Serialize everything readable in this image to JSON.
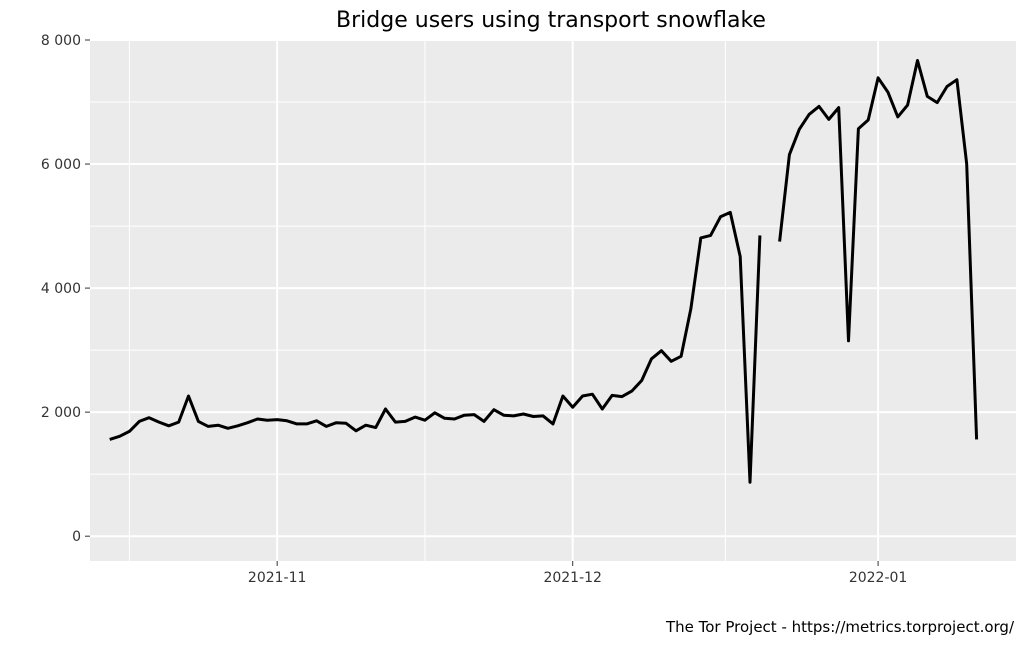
{
  "chart_data": {
    "type": "line",
    "title": "Bridge users using transport snowflake",
    "caption": "The Tor Project - https://metrics.torproject.org/",
    "xlabel": "",
    "ylabel": "",
    "grid": true,
    "legend": "none",
    "xlim": [
      "2021-10-13",
      "2022-01-15"
    ],
    "ylim": [
      -400,
      8000
    ],
    "y_ticks": [
      0,
      2000,
      4000,
      6000,
      8000
    ],
    "y_tick_labels": [
      "0",
      "2 000",
      "4 000",
      "6 000",
      "8 000"
    ],
    "x_ticks": [
      "2021-11-01",
      "2021-12-01",
      "2022-01-01"
    ],
    "x_tick_labels": [
      "2021-11",
      "2021-12",
      "2022-01"
    ],
    "colors": {
      "line": "#000000",
      "panel": "#ebebeb",
      "grid": "#ffffff"
    },
    "series": [
      {
        "x": [
          "2021-10-15",
          "2021-10-16",
          "2021-10-17",
          "2021-10-18",
          "2021-10-19",
          "2021-10-20",
          "2021-10-21",
          "2021-10-22",
          "2021-10-23",
          "2021-10-24",
          "2021-10-25",
          "2021-10-26",
          "2021-10-27",
          "2021-10-28",
          "2021-10-29",
          "2021-10-30",
          "2021-10-31",
          "2021-11-01",
          "2021-11-02",
          "2021-11-03",
          "2021-11-04",
          "2021-11-05",
          "2021-11-06",
          "2021-11-07",
          "2021-11-08",
          "2021-11-09",
          "2021-11-10",
          "2021-11-11",
          "2021-11-12",
          "2021-11-13",
          "2021-11-14",
          "2021-11-15",
          "2021-11-16",
          "2021-11-17",
          "2021-11-18",
          "2021-11-19",
          "2021-11-20",
          "2021-11-21",
          "2021-11-22",
          "2021-11-23",
          "2021-11-24",
          "2021-11-25",
          "2021-11-26",
          "2021-11-27",
          "2021-11-28",
          "2021-11-29",
          "2021-11-30",
          "2021-12-01",
          "2021-12-02",
          "2021-12-03",
          "2021-12-04",
          "2021-12-05",
          "2021-12-06",
          "2021-12-07",
          "2021-12-08",
          "2021-12-09",
          "2021-12-10",
          "2021-12-11",
          "2021-12-12",
          "2021-12-13",
          "2021-12-14",
          "2021-12-15",
          "2021-12-16",
          "2021-12-17",
          "2021-12-18",
          "2021-12-19",
          "2021-12-20",
          "2021-12-21",
          "2021-12-22",
          "2021-12-23",
          "2021-12-24",
          "2021-12-25",
          "2021-12-26",
          "2021-12-27",
          "2021-12-28",
          "2021-12-29",
          "2021-12-30",
          "2021-12-31",
          "2022-01-01",
          "2022-01-02",
          "2022-01-03",
          "2022-01-04",
          "2022-01-05",
          "2022-01-06",
          "2022-01-07",
          "2022-01-08",
          "2022-01-09",
          "2022-01-10",
          "2022-01-11"
        ],
        "values": [
          1560,
          1610,
          1690,
          1850,
          1910,
          1840,
          1780,
          1840,
          2260,
          1850,
          1770,
          1790,
          1740,
          1780,
          1830,
          1890,
          1870,
          1880,
          1860,
          1810,
          1810,
          1860,
          1770,
          1830,
          1820,
          1700,
          1790,
          1750,
          2050,
          1840,
          1850,
          1920,
          1870,
          1990,
          1900,
          1890,
          1950,
          1960,
          1850,
          2040,
          1950,
          1940,
          1970,
          1930,
          1940,
          1810,
          2260,
          2080,
          2260,
          2290,
          2050,
          2270,
          2250,
          2340,
          2510,
          2860,
          2990,
          2820,
          2900,
          3670,
          4810,
          4850,
          5150,
          5220,
          4510,
          870,
          4850,
          null,
          4750,
          6150,
          6560,
          6800,
          6930,
          6720,
          6910,
          3150,
          6570,
          6710,
          7390,
          7160,
          6760,
          6950,
          7670,
          7090,
          6990,
          7250,
          7360,
          6000,
          1560
        ]
      }
    ]
  }
}
